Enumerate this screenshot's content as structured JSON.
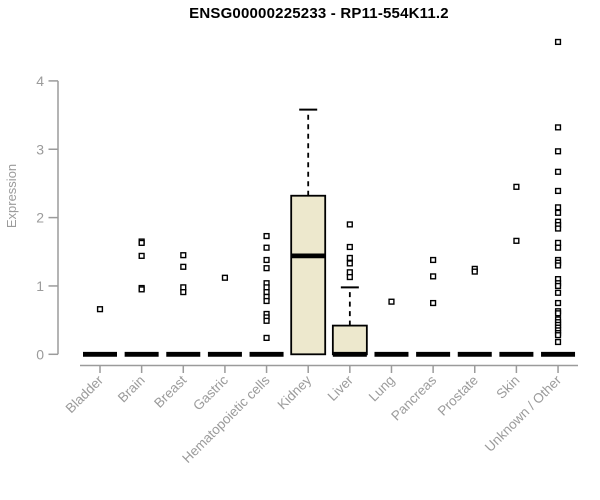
{
  "chart_data": {
    "type": "boxplot",
    "title": "ENSG00000225233 - RP11-554K11.2",
    "ylabel": "Expression",
    "yticks": [
      0,
      1,
      2,
      3,
      4
    ],
    "ylim": [
      0,
      4.6
    ],
    "grid": false,
    "legend": false,
    "categories": [
      "Bladder",
      "Brain",
      "Breast",
      "Gastric",
      "Hematopoietic cells",
      "Kidney",
      "Liver",
      "Lung",
      "Pancreas",
      "Prostate",
      "Skin",
      "Unknown / Other"
    ],
    "series": [
      {
        "name": "Bladder",
        "q1": 0,
        "median": 0,
        "q3": 0,
        "whisker_low": 0,
        "whisker_high": 0,
        "outliers": [
          0.66
        ]
      },
      {
        "name": "Brain",
        "q1": 0,
        "median": 0,
        "q3": 0,
        "whisker_low": 0,
        "whisker_high": 0,
        "outliers": [
          1.65,
          1.63,
          1.44,
          0.97,
          0.95
        ]
      },
      {
        "name": "Breast",
        "q1": 0,
        "median": 0,
        "q3": 0,
        "whisker_low": 0,
        "whisker_high": 0,
        "outliers": [
          1.45,
          1.28,
          0.98,
          0.91
        ]
      },
      {
        "name": "Gastric",
        "q1": 0,
        "median": 0,
        "q3": 0,
        "whisker_low": 0,
        "whisker_high": 0,
        "outliers": [
          1.12
        ]
      },
      {
        "name": "Hematopoietic cells",
        "q1": 0,
        "median": 0,
        "q3": 0,
        "whisker_low": 0,
        "whisker_high": 0,
        "outliers": [
          1.73,
          1.56,
          1.38,
          1.26,
          1.04,
          0.98,
          0.91,
          0.84,
          0.78,
          0.59,
          0.54,
          0.49,
          0.24
        ]
      },
      {
        "name": "Kidney",
        "q1": 0,
        "median": 1.44,
        "q3": 2.32,
        "whisker_low": 0,
        "whisker_high": 3.58,
        "outliers": []
      },
      {
        "name": "Liver",
        "q1": 0,
        "median": 0,
        "q3": 0.42,
        "whisker_low": 0,
        "whisker_high": 0.98,
        "outliers": [
          1.9,
          1.57,
          1.41,
          1.33,
          1.2,
          1.13
        ]
      },
      {
        "name": "Lung",
        "q1": 0,
        "median": 0,
        "q3": 0,
        "whisker_low": 0,
        "whisker_high": 0,
        "outliers": [
          0.77
        ]
      },
      {
        "name": "Pancreas",
        "q1": 0,
        "median": 0,
        "q3": 0,
        "whisker_low": 0,
        "whisker_high": 0,
        "outliers": [
          1.38,
          1.14,
          0.75
        ]
      },
      {
        "name": "Prostate",
        "q1": 0,
        "median": 0,
        "q3": 0,
        "whisker_low": 0,
        "whisker_high": 0,
        "outliers": [
          1.25,
          1.21
        ]
      },
      {
        "name": "Skin",
        "q1": 0,
        "median": 0,
        "q3": 0,
        "whisker_low": 0,
        "whisker_high": 0,
        "outliers": [
          2.45,
          1.66
        ]
      },
      {
        "name": "Unknown / Other",
        "q1": 0,
        "median": 0,
        "q3": 0,
        "whisker_low": 0,
        "whisker_high": 0,
        "outliers": [
          4.57,
          3.32,
          2.97,
          2.67,
          2.39,
          2.15,
          2.07,
          1.94,
          1.89,
          1.84,
          1.63,
          1.56,
          1.38,
          1.34,
          1.3,
          1.1,
          1.04,
          1.0,
          0.9,
          0.75,
          0.63,
          0.6,
          0.51,
          0.47,
          0.43,
          0.39,
          0.35,
          0.31,
          0.28,
          0.18
        ]
      }
    ],
    "colors": {
      "box_fill": "#EDE8CD",
      "box_stroke": "#000000",
      "median": "#000000",
      "outlier_fill": "#FFFFFF",
      "outlier_stroke": "#000000",
      "axis": "#9B9B9B",
      "tick_label": "#9B9B9B",
      "title": "#000000",
      "background": "#FFFFFF"
    }
  }
}
